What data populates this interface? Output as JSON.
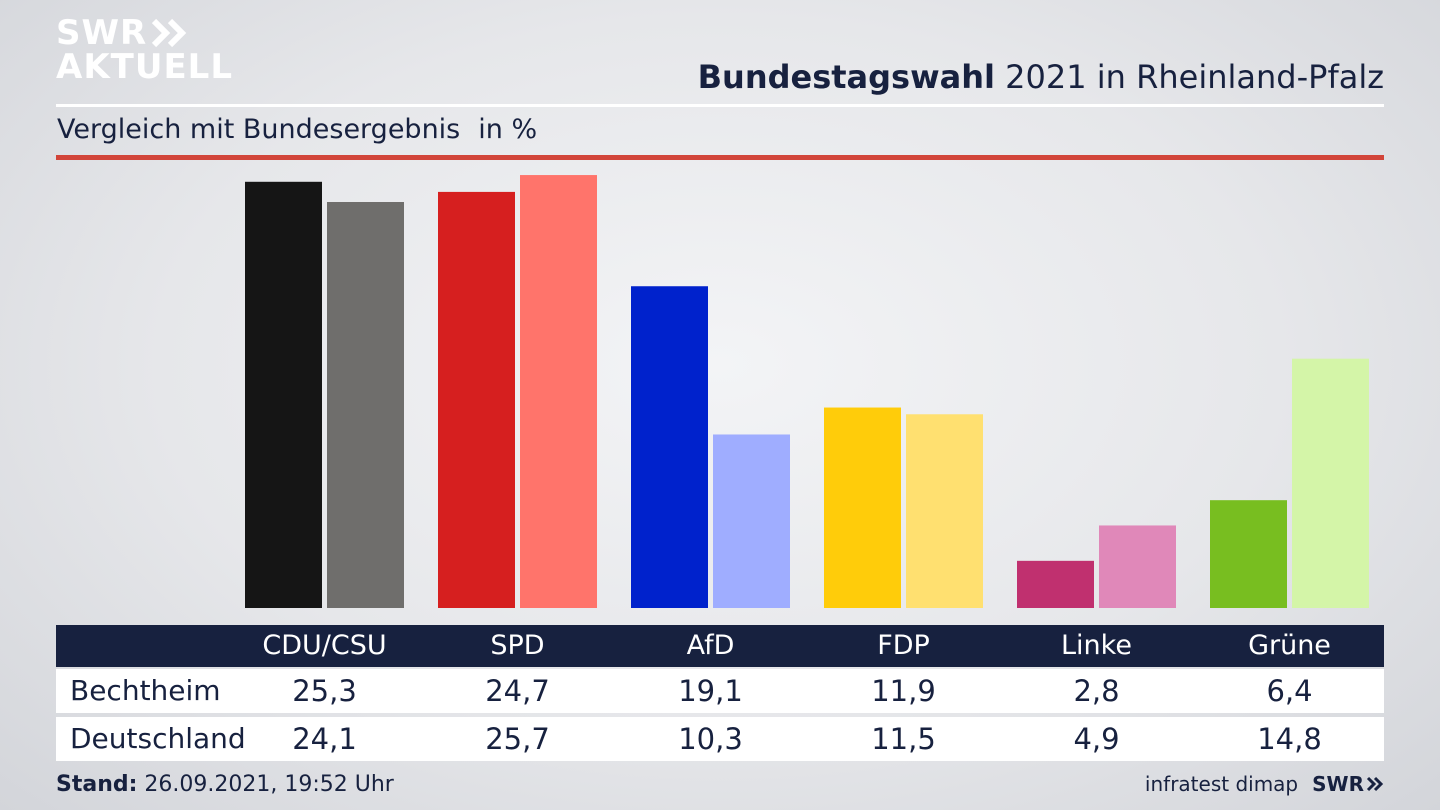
{
  "logo": {
    "line1": "SWR",
    "line2": "AKTUELL"
  },
  "header": {
    "title_bold": "Bundestagswahl",
    "title_rest": " 2021 in Rheinland-Pfalz"
  },
  "subheader": {
    "text": "Vergleich mit Bundesergebnis",
    "unit": "in %"
  },
  "footer": {
    "stand_label": "Stand:",
    "stand_value": " 26.09.2021, 19:52 Uhr",
    "source": "infratest dimap",
    "brand": "SWR"
  },
  "chart_data": {
    "type": "bar",
    "title": "Bundestagswahl 2021 in Rheinland-Pfalz",
    "subtitle": "Vergleich mit Bundesergebnis",
    "unit": "in %",
    "categories": [
      "CDU/CSU",
      "SPD",
      "AfD",
      "FDP",
      "Linke",
      "Grüne"
    ],
    "series": [
      {
        "name": "Bechtheim",
        "values": [
          "25,3",
          "24,7",
          "19,1",
          "11,9",
          "2,8",
          "6,4"
        ],
        "colors": [
          "#151515",
          "#d61f1f",
          "#0022cc",
          "#ffcc0a",
          "#c0306f",
          "#78be20"
        ]
      },
      {
        "name": "Deutschland",
        "values": [
          "24,1",
          "25,7",
          "10,3",
          "11,5",
          "4,9",
          "14,8"
        ],
        "colors": [
          "#6f6e6c",
          "#ff746b",
          "#9fadff",
          "#ffe070",
          "#e088b9",
          "#d4f5a8"
        ]
      }
    ],
    "ylim": [
      0,
      26
    ]
  }
}
